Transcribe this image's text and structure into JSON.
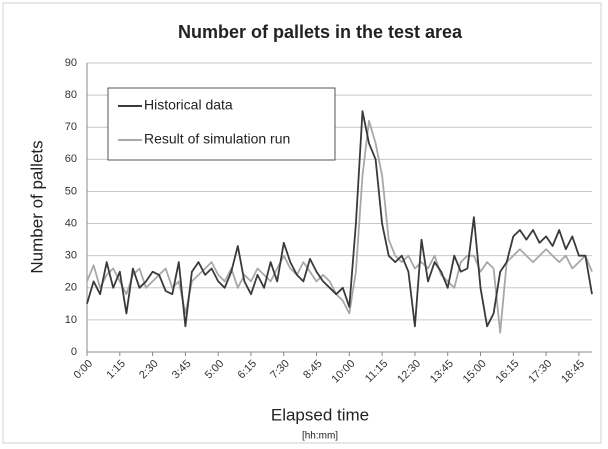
{
  "chart_data": {
    "type": "line",
    "title": "Number of pallets in the test area",
    "xlabel": "Elapsed time",
    "xlabel_sub": "[hh:mm]",
    "ylabel": "Number of pallets",
    "categories": [
      "0:00",
      null,
      null,
      null,
      null,
      "1:15",
      null,
      null,
      null,
      null,
      "2:30",
      null,
      null,
      null,
      null,
      "3:45",
      null,
      null,
      null,
      null,
      "5:00",
      null,
      null,
      null,
      null,
      "6:15",
      null,
      null,
      null,
      null,
      "7:30",
      null,
      null,
      null,
      null,
      "8:45",
      null,
      null,
      null,
      null,
      "10:00",
      null,
      null,
      null,
      null,
      "11:15",
      null,
      null,
      null,
      null,
      "12:30",
      null,
      null,
      null,
      null,
      "13:45",
      null,
      null,
      null,
      null,
      "15:00",
      null,
      null,
      null,
      null,
      "16:15",
      null,
      null,
      null,
      null,
      "17:30",
      null,
      null,
      null,
      null,
      "18:45",
      null,
      null
    ],
    "series": [
      {
        "name": "Historical data",
        "color": "#3a3a3a",
        "values": [
          15,
          22,
          18,
          28,
          20,
          25,
          12,
          26,
          20,
          22,
          25,
          24,
          19,
          18,
          28,
          8,
          25,
          28,
          24,
          26,
          22,
          20,
          25,
          33,
          22,
          18,
          24,
          20,
          28,
          22,
          34,
          28,
          24,
          22,
          29,
          25,
          22,
          20,
          18,
          20,
          14,
          40,
          75,
          65,
          60,
          40,
          30,
          28,
          30,
          25,
          8,
          35,
          22,
          28,
          25,
          20,
          30,
          25,
          26,
          42,
          20,
          8,
          12,
          25,
          28,
          36,
          38,
          35,
          38,
          34,
          36,
          33,
          38,
          32,
          36,
          30,
          30,
          18
        ]
      },
      {
        "name": "Result of simulation run",
        "color": "#a8a8a8",
        "values": [
          22,
          27,
          20,
          24,
          26,
          22,
          18,
          24,
          26,
          20,
          22,
          24,
          26,
          20,
          22,
          12,
          22,
          24,
          26,
          28,
          24,
          22,
          26,
          20,
          24,
          22,
          26,
          24,
          22,
          26,
          30,
          26,
          24,
          28,
          25,
          22,
          24,
          22,
          18,
          16,
          12,
          25,
          55,
          72,
          65,
          55,
          35,
          30,
          28,
          30,
          26,
          28,
          26,
          30,
          24,
          22,
          20,
          28,
          30,
          30,
          25,
          28,
          26,
          6,
          28,
          30,
          32,
          30,
          28,
          30,
          32,
          30,
          28,
          30,
          26,
          28,
          30,
          25
        ]
      }
    ],
    "ylim": [
      0,
      90
    ],
    "yticks": [
      0,
      10,
      20,
      30,
      40,
      50,
      60,
      70,
      80,
      90
    ],
    "grid": true,
    "legend": "upper left"
  }
}
